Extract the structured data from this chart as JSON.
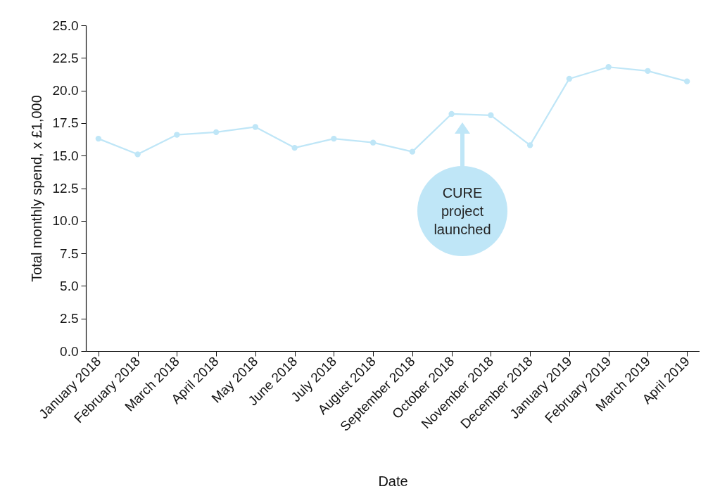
{
  "chart_data": {
    "type": "line",
    "xlabel": "Date",
    "ylabel": "Total monthly spend, x £1,000",
    "categories": [
      "January 2018",
      "February 2018",
      "March 2018",
      "April 2018",
      "May 2018",
      "June 2018",
      "July 2018",
      "August 2018",
      "September 2018",
      "October 2018",
      "November 2018",
      "December 2018",
      "January 2019",
      "February 2019",
      "March 2019",
      "April 2019"
    ],
    "series": [
      {
        "color": "#bfe6f7",
        "values": [
          16.3,
          15.1,
          16.6,
          16.8,
          17.2,
          15.6,
          16.3,
          16.0,
          15.3,
          18.2,
          18.1,
          15.8,
          20.9,
          21.8,
          21.5,
          20.7
        ]
      }
    ],
    "ylim": [
      0,
      25
    ],
    "yticks": [
      {
        "value": 0,
        "label": "0.0"
      },
      {
        "value": 2.5,
        "label": "2.5"
      },
      {
        "value": 5,
        "label": "5.0"
      },
      {
        "value": 7.5,
        "label": "7.5"
      },
      {
        "value": 10,
        "label": "10.0"
      },
      {
        "value": 12.5,
        "label": "12.5"
      },
      {
        "value": 15,
        "label": "15.0"
      },
      {
        "value": 17.5,
        "label": "17.5"
      },
      {
        "value": 20,
        "label": "20.0"
      },
      {
        "value": 22.5,
        "label": "22.5"
      },
      {
        "value": 25,
        "label": "25.0"
      }
    ],
    "marker": "circle",
    "grid": false,
    "annotations": [
      "CURE project launched"
    ]
  }
}
